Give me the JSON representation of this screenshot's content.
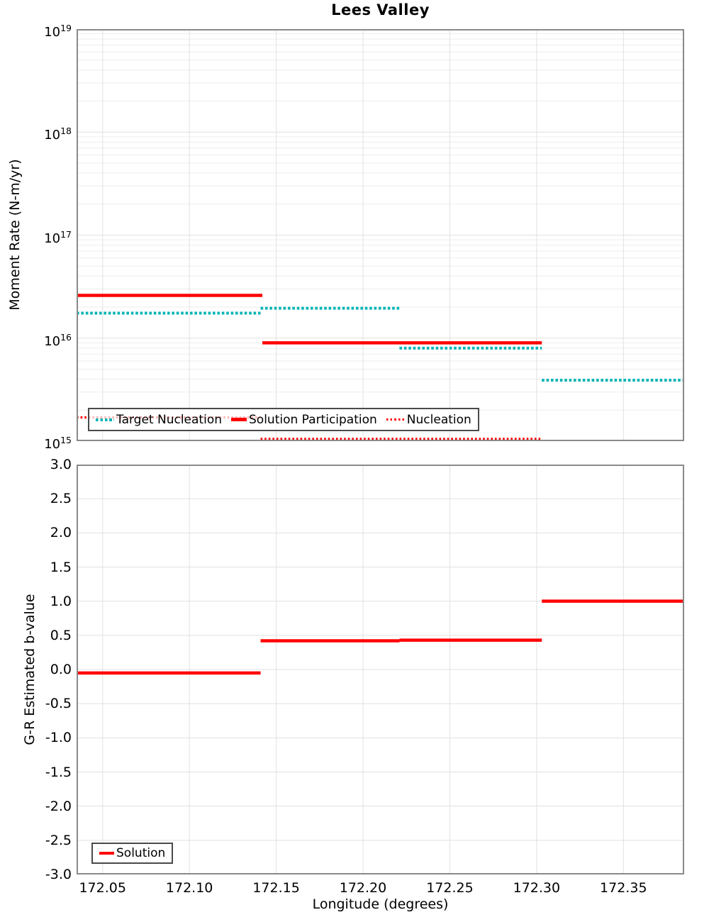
{
  "title": "Lees Valley",
  "style": {
    "red": "#FF0000",
    "teal": "#00B4B4",
    "grid_minor": "#EDEDED",
    "grid_major": "#E1E1E1",
    "spine": "#8A8A8A",
    "legend_border": "#4A4A4A"
  },
  "chart_data": [
    {
      "type": "line",
      "panel": "top",
      "title": "Lees Valley",
      "ylabel": "Moment Rate (N-m/yr)",
      "xlabel": "",
      "yscale": "log",
      "ylim_exp": [
        15,
        19
      ],
      "xlim": [
        172.035,
        172.385
      ],
      "xtick_values": [
        172.05,
        172.1,
        172.15,
        172.2,
        172.25,
        172.3,
        172.35
      ],
      "ytick_exponents": [
        19,
        18,
        17,
        16,
        15
      ],
      "grid": true,
      "legend_position": "lower-left-inside",
      "series": [
        {
          "name": "Target Nucleation",
          "style": "dotted",
          "color": "#00B4B4",
          "width": 4,
          "dash": [
            3.6,
            2.8
          ],
          "segments": [
            {
              "x": [
                172.035,
                172.141
              ],
              "y": 1.75e+16
            },
            {
              "x": [
                172.141,
                172.221
              ],
              "y": 1.95e+16
            },
            {
              "x": [
                172.221,
                172.303
              ],
              "y": 8000000000000000.0
            },
            {
              "x": [
                172.303,
                172.385
              ],
              "y": 3900000000000000.0
            }
          ]
        },
        {
          "name": "Solution Participation",
          "style": "solid",
          "color": "#FF0000",
          "width": 4.5,
          "dash": null,
          "segments": [
            {
              "x": [
                172.035,
                172.142
              ],
              "y": 2.6e+16
            },
            {
              "x": [
                172.142,
                172.303
              ],
              "y": 9000000000000000.0
            }
          ]
        },
        {
          "name": "Nucleation",
          "style": "dotted",
          "color": "#FF0000",
          "width": 3.4,
          "dash": [
            2.6,
            3
          ],
          "segments": [
            {
              "x": [
                172.035,
                172.141
              ],
              "y": 1700000000000000.0
            },
            {
              "x": [
                172.141,
                172.303
              ],
              "y": 1050000000000000.0
            }
          ]
        }
      ]
    },
    {
      "type": "line",
      "panel": "bottom",
      "ylabel": "G-R Estimated b-value",
      "xlabel": "Longitude (degrees)",
      "yscale": "linear",
      "ylim": [
        -3.0,
        3.0
      ],
      "xlim": [
        172.035,
        172.385
      ],
      "xtick_values": [
        172.05,
        172.1,
        172.15,
        172.2,
        172.25,
        172.3,
        172.35
      ],
      "xtick_labels": [
        "172.05",
        "172.10",
        "172.15",
        "172.20",
        "172.25",
        "172.30",
        "172.35"
      ],
      "ytick_values": [
        3.0,
        2.5,
        2.0,
        1.5,
        1.0,
        0.5,
        0.0,
        -0.5,
        -1.0,
        -1.5,
        -2.0,
        -2.5,
        -3.0
      ],
      "ytick_labels": [
        "3.0",
        "2.5",
        "2.0",
        "1.5",
        "1.0",
        "0.5",
        "0.0",
        "-0.5",
        "-1.0",
        "-1.5",
        "-2.0",
        "-2.5",
        "-3.0"
      ],
      "grid": true,
      "legend_position": "lower-left-inside",
      "series": [
        {
          "name": "Solution",
          "style": "solid",
          "color": "#FF0000",
          "width": 4.5,
          "dash": null,
          "segments": [
            {
              "x": [
                172.035,
                172.141
              ],
              "y": -0.05
            },
            {
              "x": [
                172.141,
                172.221
              ],
              "y": 0.42
            },
            {
              "x": [
                172.221,
                172.303
              ],
              "y": 0.43
            },
            {
              "x": [
                172.303,
                172.385
              ],
              "y": 1.0
            }
          ]
        }
      ]
    }
  ]
}
